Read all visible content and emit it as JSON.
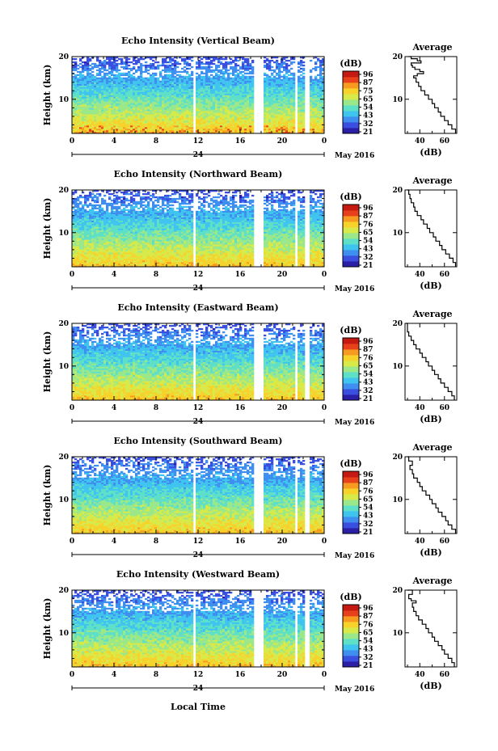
{
  "figure": {
    "xlabel": "Local Time",
    "date_label": "May 2016",
    "day_label": "24",
    "height_axis_label": "Height (km)",
    "average_title": "Average",
    "average_xlabel": "(dB)",
    "colorbar_label": "(dB)"
  },
  "colors": {
    "scale": [
      "#2b1fa8",
      "#3a4fe0",
      "#3f8ff0",
      "#3fc4ef",
      "#5ee0c8",
      "#9ae88a",
      "#d8ea4a",
      "#f6d22b",
      "#f79a20",
      "#e8401a",
      "#c41a12"
    ],
    "gap": "#ffffff",
    "profile_line": "#000000"
  },
  "chart_data": [
    {
      "type": "heatmap",
      "title": "Echo Intensity (Vertical Beam)",
      "xlabel": "Local Time",
      "ylabel": "Height (km)",
      "xlim": [
        0,
        24
      ],
      "ylim": [
        2,
        20
      ],
      "xticks": [
        "0",
        "4",
        "8",
        "12",
        "16",
        "20",
        "0"
      ],
      "yticks": [
        "10",
        "20"
      ],
      "colorbar": {
        "label": "(dB)",
        "ticks": [
          "96",
          "87",
          "75",
          "65",
          "54",
          "43",
          "32",
          "21"
        ]
      },
      "data_gaps_hours": [
        [
          5.9,
          6.1
        ],
        [
          11.6,
          11.8
        ],
        [
          17.3,
          18.2
        ],
        [
          20.2,
          20.4
        ],
        [
          21.2,
          21.5
        ],
        [
          22.1,
          22.6
        ]
      ],
      "profile": {
        "title": "Average",
        "xlabel": "(dB)",
        "xticks": [
          "40",
          "60"
        ],
        "yticks": [
          "10",
          "20"
        ],
        "xlim": [
          28,
          70
        ],
        "ylim": [
          2,
          20
        ],
        "y": [
          2,
          3,
          4,
          5,
          6,
          7,
          8,
          9,
          10,
          11,
          12,
          13,
          14,
          15,
          15.5,
          16,
          16.5,
          17,
          17.5,
          18,
          18.5,
          19,
          19.5,
          20
        ],
        "x": [
          69,
          66,
          63,
          60,
          57,
          55,
          52,
          50,
          47,
          44,
          41,
          39,
          37,
          35,
          38,
          43,
          40,
          36,
          34,
          33,
          41,
          38,
          33,
          31
        ]
      }
    },
    {
      "type": "heatmap",
      "title": "Echo Intensity (Northward Beam)",
      "xlabel": "Local Time",
      "ylabel": "Height (km)",
      "xlim": [
        0,
        24
      ],
      "ylim": [
        2,
        20
      ],
      "xticks": [
        "0",
        "4",
        "8",
        "12",
        "16",
        "20",
        "0"
      ],
      "yticks": [
        "10",
        "20"
      ],
      "colorbar": {
        "label": "(dB)",
        "ticks": [
          "96",
          "87",
          "76",
          "65",
          "54",
          "43",
          "32",
          "21"
        ]
      },
      "data_gaps_hours": [
        [
          5.9,
          6.1
        ],
        [
          11.6,
          11.8
        ],
        [
          17.3,
          18.2
        ],
        [
          20.2,
          20.4
        ],
        [
          21.2,
          21.5
        ],
        [
          22.1,
          22.6
        ]
      ],
      "profile": {
        "title": "Average",
        "xlabel": "(dB)",
        "xticks": [
          "40",
          "60"
        ],
        "yticks": [
          "10",
          "20"
        ],
        "xlim": [
          28,
          70
        ],
        "ylim": [
          2,
          20
        ],
        "y": [
          2,
          3,
          4,
          5,
          6,
          7,
          8,
          9,
          10,
          11,
          12,
          13,
          14,
          15,
          16,
          17,
          18,
          19,
          20
        ],
        "x": [
          69,
          67,
          64,
          61,
          58,
          56,
          53,
          51,
          48,
          46,
          43,
          41,
          38,
          36,
          35,
          33,
          32,
          31,
          30
        ]
      }
    },
    {
      "type": "heatmap",
      "title": "Echo Intensity (Eastward Beam)",
      "xlabel": "Local Time",
      "ylabel": "Height (km)",
      "xlim": [
        0,
        24
      ],
      "ylim": [
        2,
        20
      ],
      "xticks": [
        "0",
        "4",
        "8",
        "12",
        "16",
        "20",
        "0"
      ],
      "yticks": [
        "10",
        "20"
      ],
      "colorbar": {
        "label": "(dB)",
        "ticks": [
          "96",
          "87",
          "76",
          "65",
          "54",
          "43",
          "32",
          "21"
        ]
      },
      "data_gaps_hours": [
        [
          5.9,
          6.1
        ],
        [
          11.6,
          11.8
        ],
        [
          17.3,
          18.2
        ],
        [
          20.2,
          20.4
        ],
        [
          21.2,
          21.5
        ],
        [
          22.1,
          22.6
        ]
      ],
      "profile": {
        "title": "Average",
        "xlabel": "(dB)",
        "xticks": [
          "40",
          "60"
        ],
        "yticks": [
          "10",
          "20"
        ],
        "xlim": [
          28,
          70
        ],
        "ylim": [
          2,
          20
        ],
        "y": [
          2,
          3,
          4,
          5,
          6,
          7,
          8,
          9,
          10,
          11,
          12,
          13,
          14,
          15,
          16,
          17,
          18,
          19,
          20
        ],
        "x": [
          68,
          66,
          63,
          60,
          57,
          55,
          52,
          50,
          47,
          45,
          42,
          40,
          37,
          35,
          33,
          31,
          30,
          30,
          29
        ]
      }
    },
    {
      "type": "heatmap",
      "title": "Echo Intensity (Southward Beam)",
      "xlabel": "Local Time",
      "ylabel": "Height (km)",
      "xlim": [
        0,
        24
      ],
      "ylim": [
        2,
        20
      ],
      "xticks": [
        "0",
        "4",
        "8",
        "12",
        "16",
        "20",
        "0"
      ],
      "yticks": [
        "10",
        "20"
      ],
      "colorbar": {
        "label": "(dB)",
        "ticks": [
          "96",
          "87",
          "76",
          "65",
          "54",
          "43",
          "32",
          "21"
        ]
      },
      "data_gaps_hours": [
        [
          5.9,
          6.1
        ],
        [
          11.6,
          11.8
        ],
        [
          17.3,
          18.2
        ],
        [
          20.2,
          20.4
        ],
        [
          21.2,
          21.5
        ],
        [
          22.1,
          22.6
        ]
      ],
      "profile": {
        "title": "Average",
        "xlabel": "(dB)",
        "xticks": [
          "40",
          "60"
        ],
        "yticks": [
          "10",
          "20"
        ],
        "xlim": [
          28,
          70
        ],
        "ylim": [
          2,
          20
        ],
        "y": [
          2,
          3,
          4,
          5,
          6,
          7,
          8,
          9,
          10,
          11,
          12,
          13,
          14,
          15,
          16,
          17,
          18,
          19,
          20
        ],
        "x": [
          69,
          66,
          63,
          61,
          58,
          55,
          53,
          50,
          48,
          45,
          42,
          40,
          38,
          35,
          34,
          32,
          34,
          31,
          30
        ]
      }
    },
    {
      "type": "heatmap",
      "title": "Echo Intensity (Westward Beam)",
      "xlabel": "Local Time",
      "ylabel": "Height (km)",
      "xlim": [
        0,
        24
      ],
      "ylim": [
        2,
        20
      ],
      "xticks": [
        "0",
        "4",
        "8",
        "12",
        "16",
        "20",
        "0"
      ],
      "yticks": [
        "10",
        "20"
      ],
      "colorbar": {
        "label": "(dB)",
        "ticks": [
          "96",
          "87",
          "76",
          "65",
          "54",
          "43",
          "32",
          "21"
        ]
      },
      "data_gaps_hours": [
        [
          5.9,
          6.1
        ],
        [
          11.6,
          11.8
        ],
        [
          17.3,
          18.2
        ],
        [
          20.2,
          20.4
        ],
        [
          21.2,
          21.5
        ],
        [
          22.1,
          22.6
        ]
      ],
      "profile": {
        "title": "Average",
        "xlabel": "(dB)",
        "xticks": [
          "40",
          "60"
        ],
        "yticks": [
          "10",
          "20"
        ],
        "xlim": [
          28,
          70
        ],
        "ylim": [
          2,
          20
        ],
        "y": [
          2,
          3,
          4,
          5,
          6,
          7,
          8,
          9,
          10,
          11,
          12,
          13,
          14,
          15,
          16,
          17,
          17.5,
          18,
          19,
          20
        ],
        "x": [
          68,
          66,
          63,
          60,
          58,
          55,
          52,
          50,
          47,
          45,
          42,
          39,
          37,
          35,
          34,
          37,
          33,
          31,
          34,
          30
        ]
      }
    }
  ]
}
